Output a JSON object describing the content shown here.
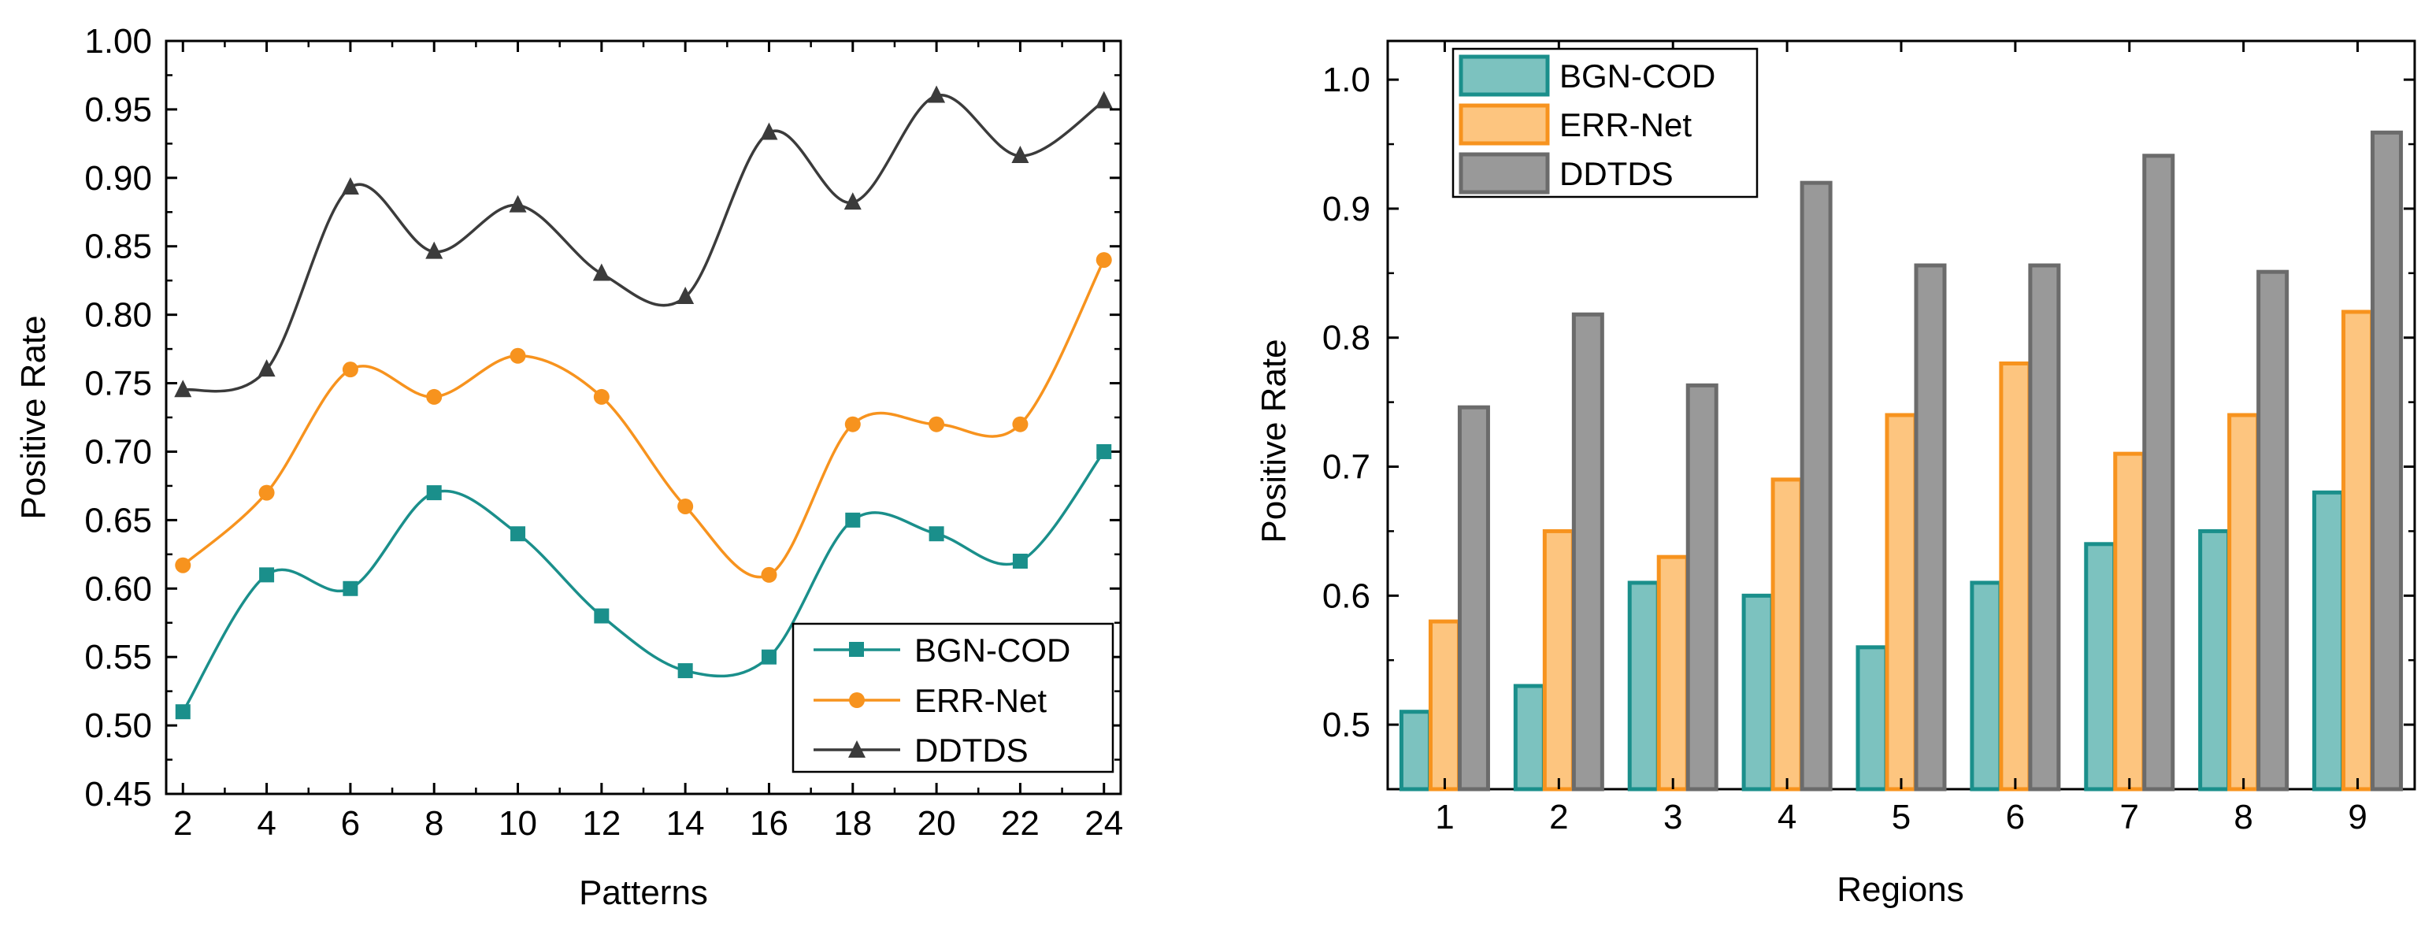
{
  "colors": {
    "bgn": "#1a8f8b",
    "bgn_fill": "#7cc2bf",
    "err": "#f7931e",
    "err_fill": "#fdc57f",
    "ddtds": "#3b3b3b",
    "ddtds_fill": "#999999",
    "ddtds_edge": "#6b6b6b"
  },
  "chart_data": [
    {
      "type": "line",
      "xlabel": "Patterns",
      "ylabel": "Positive Rate",
      "x": [
        2,
        4,
        6,
        8,
        10,
        12,
        14,
        16,
        18,
        20,
        22,
        24
      ],
      "xlim": [
        1.6,
        24.4
      ],
      "ylim": [
        0.45,
        1.0
      ],
      "yticks": [
        "0.45",
        "0.50",
        "0.55",
        "0.60",
        "0.65",
        "0.70",
        "0.75",
        "0.80",
        "0.85",
        "0.90",
        "0.95",
        "1.00"
      ],
      "xticks": [
        "2",
        "4",
        "6",
        "8",
        "10",
        "12",
        "14",
        "16",
        "18",
        "20",
        "22",
        "24"
      ],
      "legend_position": "bottom-right",
      "series": [
        {
          "name": "BGN-COD",
          "marker": "square",
          "values": [
            0.51,
            0.61,
            0.6,
            0.67,
            0.64,
            0.58,
            0.54,
            0.55,
            0.65,
            0.64,
            0.62,
            0.7
          ]
        },
        {
          "name": "ERR-Net",
          "marker": "circle",
          "values": [
            0.617,
            0.67,
            0.76,
            0.74,
            0.77,
            0.74,
            0.66,
            0.61,
            0.72,
            0.72,
            0.72,
            0.84
          ]
        },
        {
          "name": "DDTDS",
          "marker": "triangle",
          "values": [
            0.745,
            0.76,
            0.893,
            0.846,
            0.88,
            0.83,
            0.813,
            0.933,
            0.882,
            0.96,
            0.916,
            0.956
          ]
        }
      ]
    },
    {
      "type": "bar",
      "xlabel": "Regions",
      "ylabel": "Positive Rate",
      "categories": [
        "1",
        "2",
        "3",
        "4",
        "5",
        "6",
        "7",
        "8",
        "9"
      ],
      "ylim": [
        0.45,
        1.03
      ],
      "yticks": [
        "0.5",
        "0.6",
        "0.7",
        "0.8",
        "0.9",
        "1.0"
      ],
      "legend_position": "top-left",
      "series": [
        {
          "name": "BGN-COD",
          "values": [
            0.51,
            0.53,
            0.61,
            0.6,
            0.56,
            0.61,
            0.64,
            0.65,
            0.68
          ]
        },
        {
          "name": "ERR-Net",
          "values": [
            0.58,
            0.65,
            0.63,
            0.69,
            0.74,
            0.78,
            0.71,
            0.74,
            0.82
          ]
        },
        {
          "name": "DDTDS",
          "values": [
            0.746,
            0.818,
            0.763,
            0.92,
            0.856,
            0.856,
            0.941,
            0.851,
            0.959
          ]
        }
      ]
    }
  ]
}
